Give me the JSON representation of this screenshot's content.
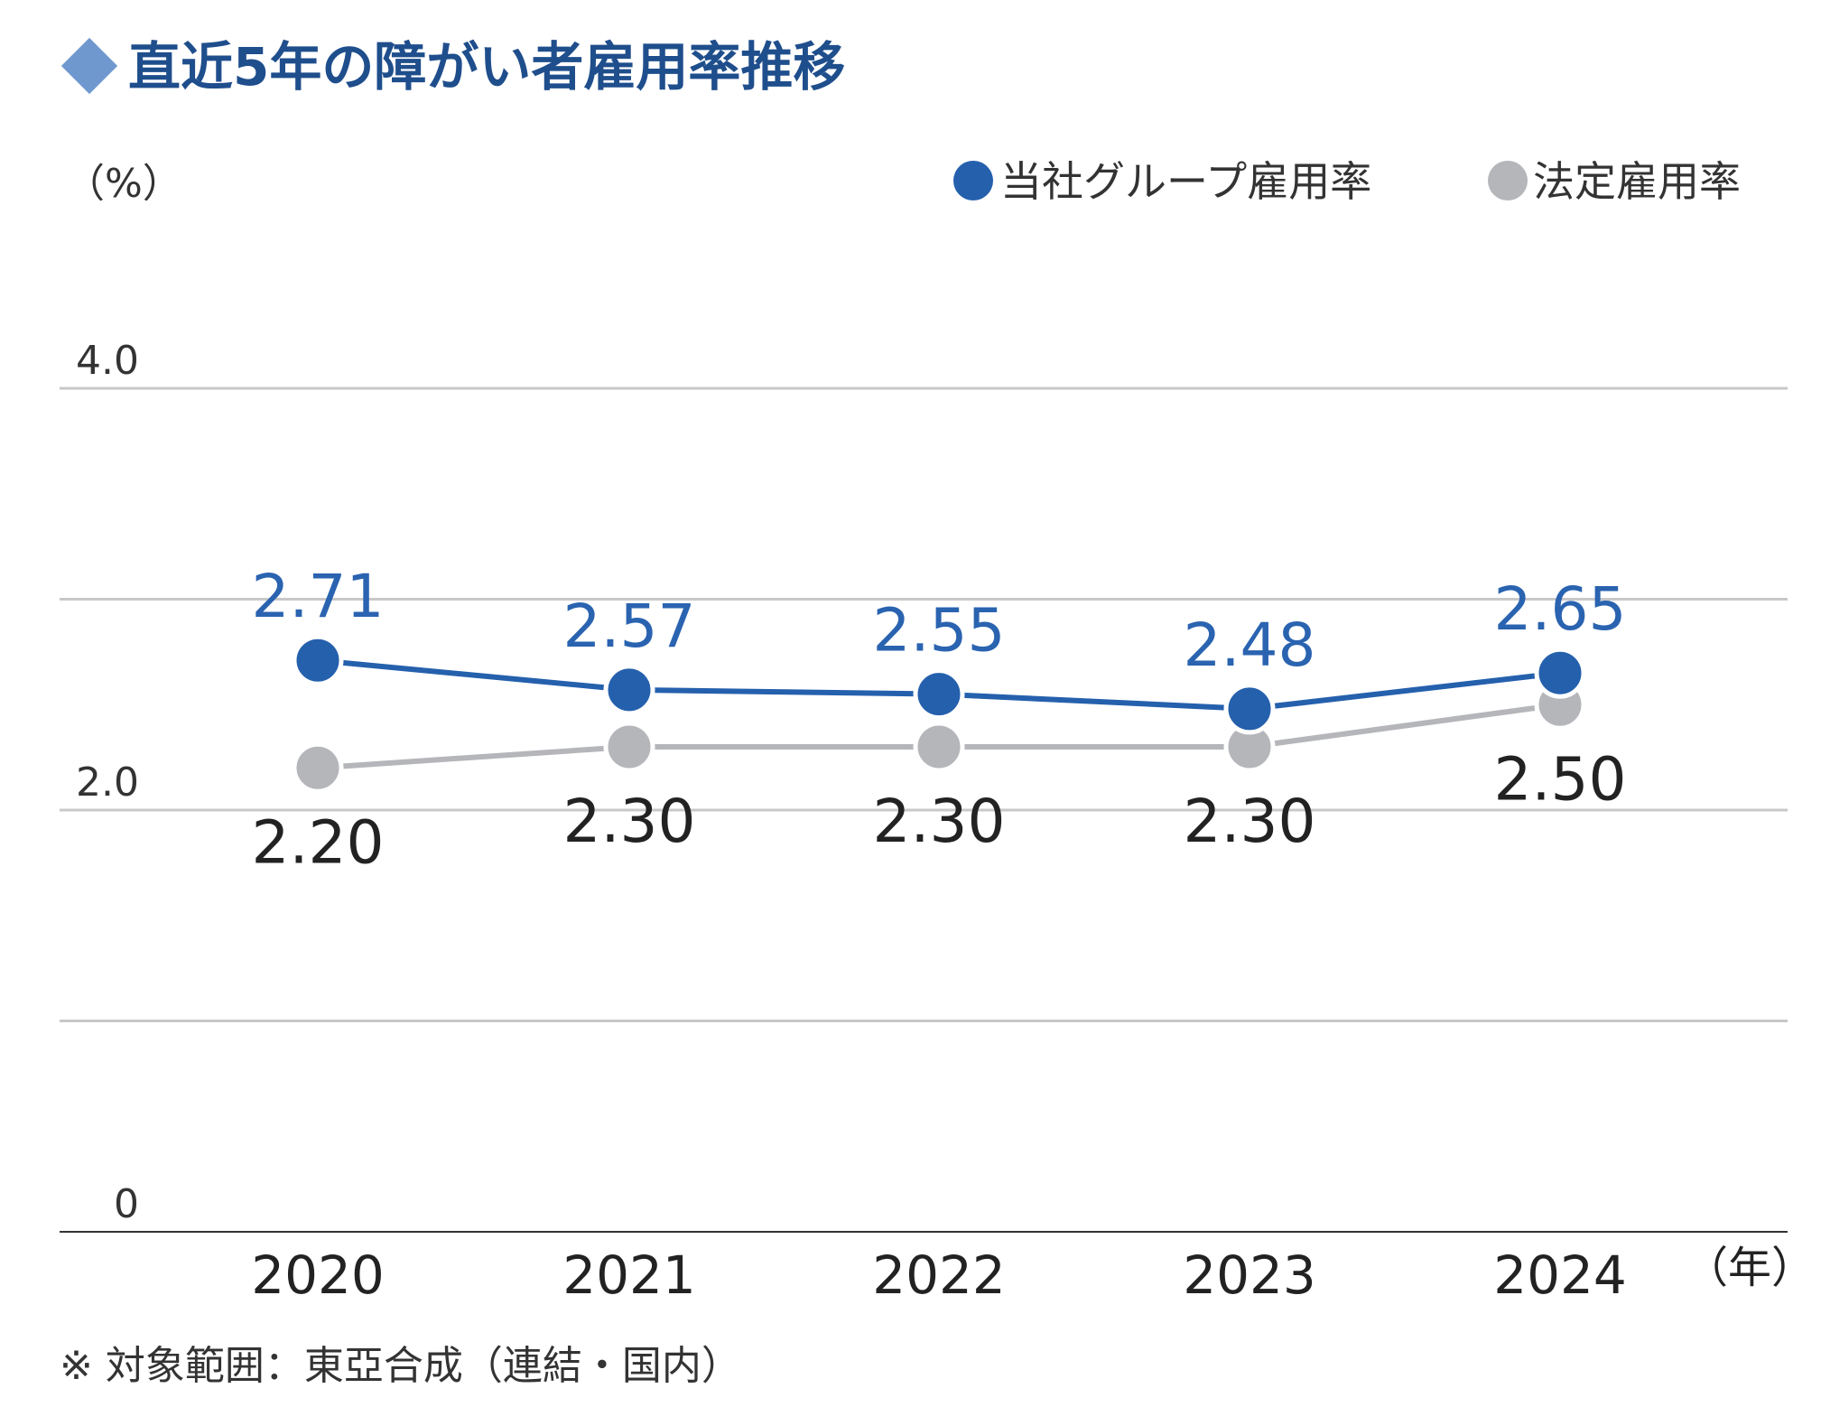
{
  "title": "直近5年の障がい者雇用率推移",
  "colors": {
    "title": "#1f4e8c",
    "title_marker": "#6f98cf",
    "company_series": "#2560ad",
    "legal_series": "#b5b6ba",
    "gridline": "#c8c8c8",
    "axis": "#333333"
  },
  "chart_data": {
    "type": "line",
    "unit_label": "（%）",
    "x_unit_label": "（年）",
    "categories": [
      "2020",
      "2021",
      "2022",
      "2023",
      "2024"
    ],
    "ylim": [
      0,
      4.0
    ],
    "yticks": [
      {
        "value": 0,
        "label": "0"
      },
      {
        "value": 2.0,
        "label": "2.0"
      },
      {
        "value": 4.0,
        "label": "4.0"
      }
    ],
    "grid": true,
    "legend_position": "top-right",
    "series": [
      {
        "name": "当社グループ雇用率",
        "values": [
          2.71,
          2.57,
          2.55,
          2.48,
          2.65
        ],
        "labels": [
          "2.71",
          "2.57",
          "2.55",
          "2.48",
          "2.65"
        ],
        "color": "#2560ad",
        "label_position": "above"
      },
      {
        "name": "法定雇用率",
        "values": [
          2.2,
          2.3,
          2.3,
          2.3,
          2.5
        ],
        "labels": [
          "2.20",
          "2.30",
          "2.30",
          "2.30",
          "2.50"
        ],
        "color": "#b5b6ba",
        "label_position": "below"
      }
    ]
  },
  "note": "※ 対象範囲：東亞合成（連結・国内）"
}
